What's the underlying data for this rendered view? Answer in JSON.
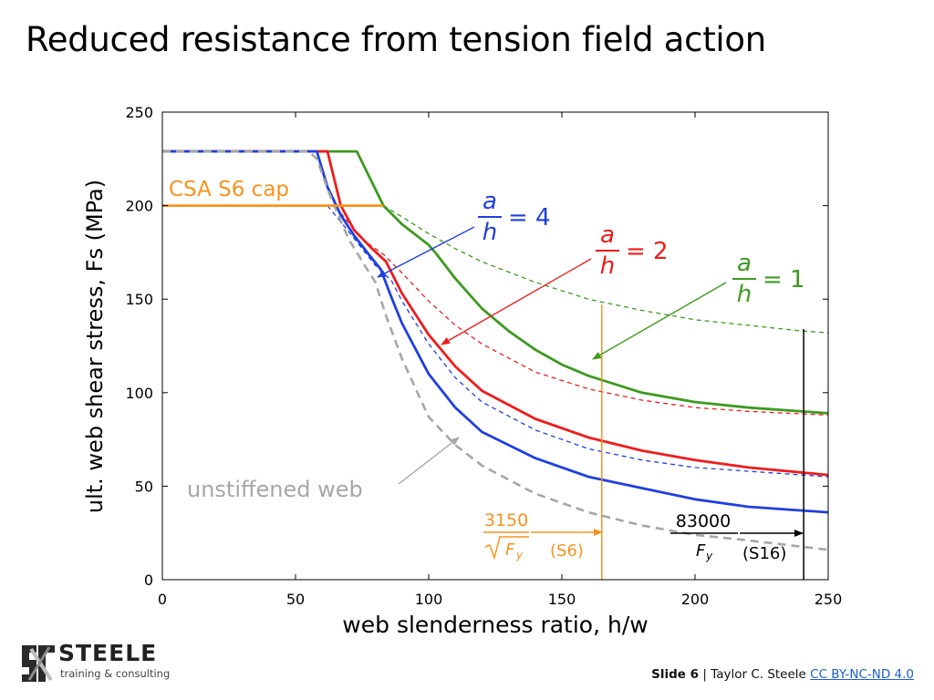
{
  "slide": {
    "title": "Reduced resistance from tension field action",
    "slide_label": "Slide 6",
    "separator": "|",
    "author": "Taylor C. Steele",
    "license_link": "CC BY-NC-ND 4.0",
    "logo": {
      "word": "STEELE",
      "tagline": "training & consulting"
    }
  },
  "chart_data": {
    "type": "line",
    "xlabel": "web slenderness ratio, h/w",
    "ylabel": "ult. web shear stress, Fs (MPa)",
    "xlim": [
      0,
      250
    ],
    "ylim": [
      0,
      250
    ],
    "xticks": [
      0,
      50,
      100,
      150,
      200,
      250
    ],
    "yticks": [
      0,
      50,
      100,
      150,
      200,
      250
    ],
    "grid": false,
    "colors": {
      "green": "#3d9a1f",
      "red": "#ee1c1c",
      "blue": "#1f3fe0",
      "gray": "#a6a6a6",
      "orange": "#f79320",
      "black": "#000000"
    },
    "series": [
      {
        "key": "green_solid",
        "color": "#3d9a1f",
        "style": "solid",
        "x": [
          0,
          73,
          83,
          90,
          100,
          103,
          110,
          120,
          130,
          140,
          150,
          160,
          180,
          200,
          220,
          250
        ],
        "y": [
          229,
          229,
          200,
          190,
          179,
          174,
          161,
          145,
          133,
          123,
          115,
          109,
          100,
          95,
          92,
          89
        ]
      },
      {
        "key": "green_dashed",
        "color": "#3d9a1f",
        "style": "dashed",
        "x": [
          83,
          90,
          100,
          110,
          120,
          140,
          160,
          180,
          200,
          220,
          240,
          250
        ],
        "y": [
          200,
          194,
          185,
          177,
          170,
          159,
          150,
          144,
          139,
          136,
          133,
          132
        ]
      },
      {
        "key": "red_solid",
        "color": "#ee1c1c",
        "style": "solid",
        "x": [
          0,
          62,
          67,
          72,
          78,
          84,
          90,
          100,
          110,
          120,
          140,
          160,
          180,
          200,
          220,
          250
        ],
        "y": [
          229,
          229,
          200,
          187,
          178,
          170,
          153,
          131,
          114,
          101,
          86,
          76,
          69,
          64,
          60,
          56
        ]
      },
      {
        "key": "red_dashed",
        "color": "#ee1c1c",
        "style": "dashed",
        "x": [
          67,
          75,
          83,
          90,
          100,
          110,
          120,
          140,
          160,
          180,
          200,
          220,
          250
        ],
        "y": [
          196,
          182,
          174,
          164,
          149,
          136,
          126,
          111,
          102,
          96,
          92,
          90,
          88
        ]
      },
      {
        "key": "blue_solid",
        "color": "#1f3fe0",
        "style": "solid",
        "x": [
          0,
          58,
          62,
          67,
          72,
          78,
          82,
          86,
          90,
          100,
          110,
          120,
          140,
          160,
          180,
          200,
          220,
          250
        ],
        "y": [
          229,
          229,
          210,
          195,
          184,
          173,
          166,
          151,
          137,
          110,
          92,
          79,
          65,
          55,
          49,
          43,
          39,
          36
        ]
      },
      {
        "key": "blue_dashed",
        "color": "#1f3fe0",
        "style": "dashed",
        "x": [
          62,
          70,
          80,
          86,
          90,
          100,
          110,
          120,
          140,
          160,
          180,
          200,
          220,
          250
        ],
        "y": [
          200,
          186,
          168,
          160,
          149,
          126,
          108,
          95,
          80,
          70,
          64,
          60,
          58,
          55
        ]
      },
      {
        "key": "unstiffened_web",
        "color": "#a6a6a6",
        "style": "dashed",
        "x": [
          0,
          55,
          58,
          62,
          66,
          70,
          76,
          80,
          84,
          90,
          100,
          110,
          120,
          140,
          160,
          180,
          200,
          220,
          250
        ],
        "y": [
          229,
          229,
          225,
          209,
          195,
          182,
          168,
          159,
          141,
          118,
          87,
          72,
          61,
          46,
          36,
          29,
          24,
          21,
          16
        ]
      },
      {
        "key": "csa_s6_cap",
        "color": "#f79320",
        "style": "solid",
        "x": [
          0,
          83
        ],
        "y": [
          200,
          200
        ]
      }
    ],
    "vlines": [
      {
        "key": "s6_limit",
        "color": "#f79320",
        "x": 165,
        "y": [
          0,
          147
        ]
      },
      {
        "key": "s16_limit",
        "color": "#000000",
        "x": 240.8,
        "y": [
          0,
          134
        ]
      }
    ],
    "annotations": {
      "csa_cap": "CSA S6 cap",
      "unstiffened": "unstiffened web",
      "a_over_h_4": {
        "num": "a",
        "den": "h",
        "rhs": "= 4"
      },
      "a_over_h_2": {
        "num": "a",
        "den": "h",
        "rhs": "= 2"
      },
      "a_over_h_1": {
        "num": "a",
        "den": "h",
        "rhs": "= 1"
      },
      "s6_formula": {
        "num": "3150",
        "den_root": "F",
        "den_sub": "y",
        "tag": "(S6)"
      },
      "s16_formula": {
        "num": "83000",
        "den": "F",
        "den_sub": "y",
        "tag": "(S16)"
      }
    }
  }
}
